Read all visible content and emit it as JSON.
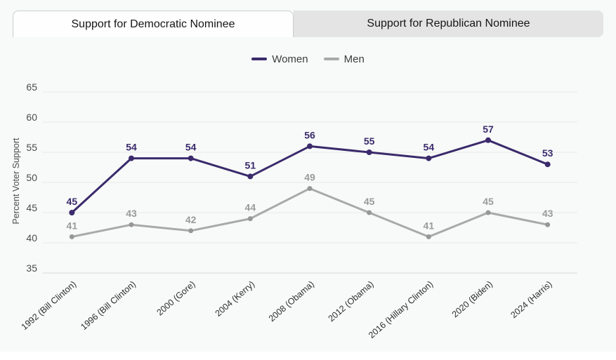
{
  "tabs": [
    {
      "label": "Support for Democratic Nominee",
      "active": true
    },
    {
      "label": "Support for Republican Nominee",
      "active": false
    }
  ],
  "legend": [
    {
      "label": "Women",
      "color": "#3b2a6c"
    },
    {
      "label": "Men",
      "color": "#a9a9a9"
    }
  ],
  "colors": {
    "background": "#f7faf8",
    "gridline": "#e9ebe9",
    "axis_line": "#d8dad9",
    "tick_text": "#4c4c4c",
    "category_text": "#2e2e2e",
    "women": "#3b2a6c",
    "men_line": "#a9a9a9",
    "men_marker": "#979797",
    "men_label": "#9a9a9a"
  },
  "chart_data": {
    "type": "line",
    "title": "",
    "categories": [
      "1992 (Bill Clinton)",
      "1996 (Bill Clinton)",
      "2000 (Gore)",
      "2004 (Kerry)",
      "2008 (Obama)",
      "2012 (Obama)",
      "2016 (Hillary Clinton)",
      "2020 (Biden)",
      "2024 (Harris)"
    ],
    "series": [
      {
        "name": "Women",
        "values": [
          45,
          54,
          54,
          51,
          56,
          55,
          54,
          57,
          53
        ],
        "color": "#3b2a6c",
        "marker_color": "#3b2a6c",
        "label_color": "#3b2a6c"
      },
      {
        "name": "Men",
        "values": [
          41,
          43,
          42,
          44,
          49,
          45,
          41,
          45,
          43
        ],
        "color": "#a9a9a9",
        "marker_color": "#979797",
        "label_color": "#9a9a9a"
      }
    ],
    "xlabel": "",
    "ylabel": "Percent Voter Support",
    "yticks": [
      35,
      40,
      45,
      50,
      55,
      60,
      65
    ],
    "ylim": [
      35,
      65
    ],
    "grid": true,
    "legend_position": "top",
    "data_labels": true
  }
}
